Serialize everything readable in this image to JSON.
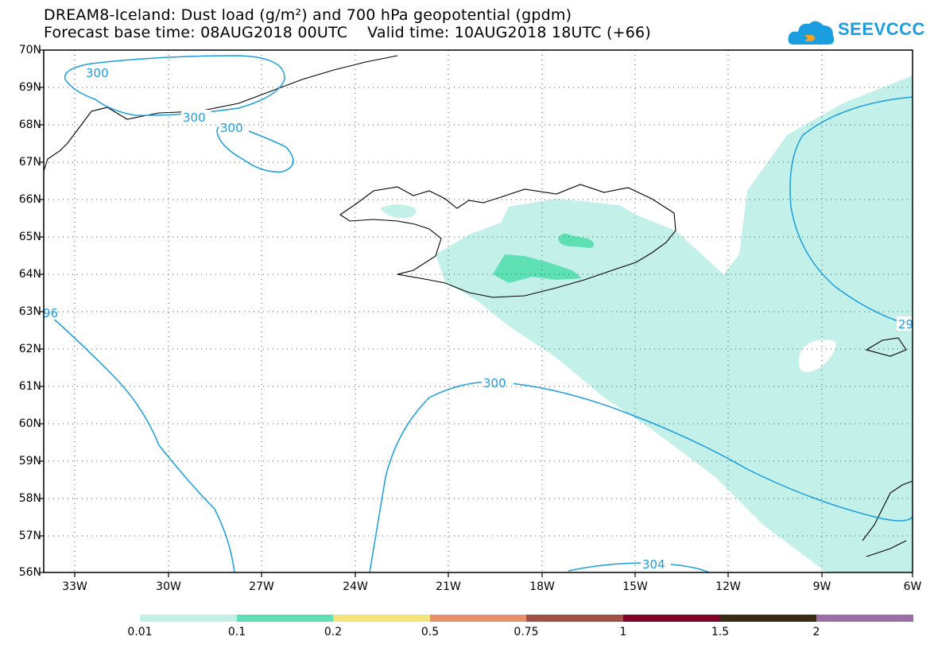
{
  "title": {
    "line1": "DREAM8-Iceland: Dust load (g/m²) and 700 hPa geopotential (gpdm)",
    "line2": "Forecast base time: 08AUG2018 00UTC    Valid time: 10AUG2018 18UTC (+66)"
  },
  "logo": {
    "text": "SEEVCCC"
  },
  "axes": {
    "lat_labels": [
      "70N",
      "69N",
      "68N",
      "67N",
      "66N",
      "65N",
      "64N",
      "63N",
      "62N",
      "61N",
      "60N",
      "59N",
      "58N",
      "57N",
      "56N"
    ],
    "lon_labels": [
      "33W",
      "30W",
      "27W",
      "24W",
      "21W",
      "18W",
      "15W",
      "12W",
      "9W",
      "6W"
    ]
  },
  "contour_labels": [
    "300",
    "300",
    "300",
    "96",
    "300",
    "29",
    "304"
  ],
  "colorbar": {
    "labels": [
      "0.01",
      "0.1",
      "0.2",
      "0.5",
      "0.75",
      "1",
      "1.5",
      "2"
    ],
    "colors": [
      "#c4f0ea",
      "#5fe0b4",
      "#f2e37a",
      "#e8906a",
      "#a24f47",
      "#800028",
      "#3a2a14",
      "#9a6fa8"
    ]
  },
  "colors": {
    "contour": "#1a9ee0",
    "dust_low": "#c4f0ea",
    "dust_mid": "#5fe0b4",
    "coast": "#000000"
  }
}
